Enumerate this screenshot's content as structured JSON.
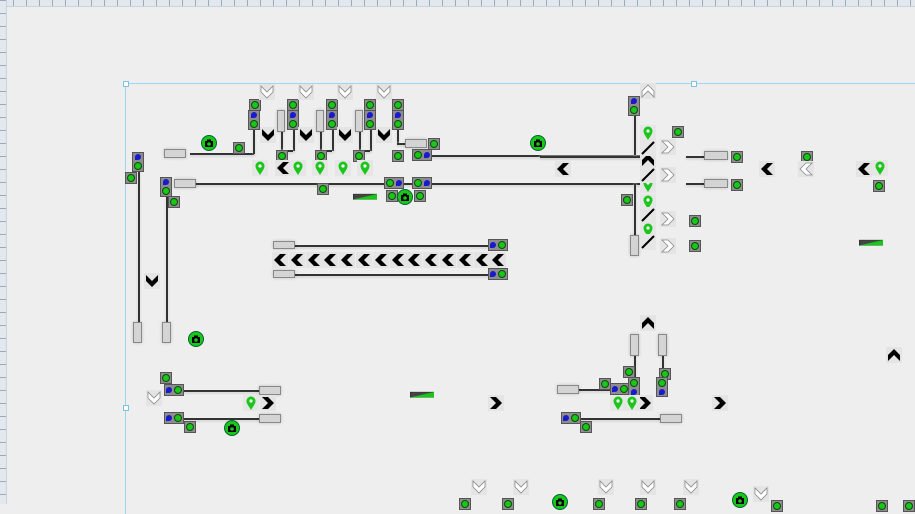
{
  "colors": {
    "background": "#eeeeee",
    "signal_green": "#19c619",
    "signal_blue": "#1a1acc",
    "signal_body": "#8d8d8d",
    "track": "#333333",
    "selection": "#9fd6ee",
    "chevron_black": "#000000",
    "chevron_white": "#ffffff"
  },
  "icons": {
    "signal": "green-signal-lamp-icon",
    "signal_pair": "blue-green-signal-icon",
    "camera": "camera-icon",
    "pin": "map-pin-icon",
    "chevron_black": "black-chevron-icon",
    "chevron_white": "white-chevron-icon",
    "switch": "switch-slash-icon",
    "ramp": "ramp-icon",
    "buffer": "buffer-stop-icon"
  }
}
